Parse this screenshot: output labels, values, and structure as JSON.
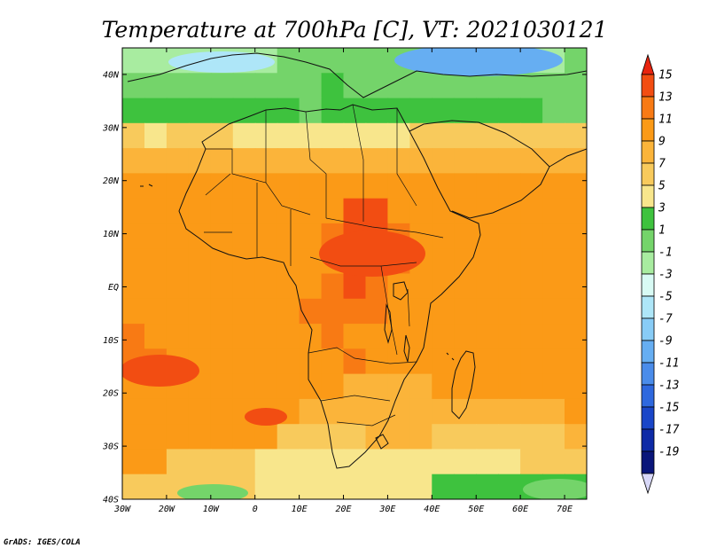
{
  "title": "Temperature at 700hPa [C], VT: 2021030121",
  "credit": "GrADS: IGES/COLA",
  "map": {
    "lon_range": [
      -30,
      75
    ],
    "lat_range": [
      -40,
      45
    ],
    "lat_ticks": [
      {
        "lat": 40,
        "label": "40N"
      },
      {
        "lat": 30,
        "label": "30N"
      },
      {
        "lat": 20,
        "label": "20N"
      },
      {
        "lat": 10,
        "label": "10N"
      },
      {
        "lat": 0,
        "label": "EQ"
      },
      {
        "lat": -10,
        "label": "10S"
      },
      {
        "lat": -20,
        "label": "20S"
      },
      {
        "lat": -30,
        "label": "30S"
      },
      {
        "lat": -40,
        "label": "40S"
      }
    ],
    "lon_ticks": [
      {
        "lon": -30,
        "label": "30W"
      },
      {
        "lon": -20,
        "label": "20W"
      },
      {
        "lon": -10,
        "label": "10W"
      },
      {
        "lon": 0,
        "label": "0"
      },
      {
        "lon": 10,
        "label": "10E"
      },
      {
        "lon": 20,
        "label": "20E"
      },
      {
        "lon": 30,
        "label": "30E"
      },
      {
        "lon": 40,
        "label": "40E"
      },
      {
        "lon": 50,
        "label": "50E"
      },
      {
        "lon": 60,
        "label": "60E"
      },
      {
        "lon": 70,
        "label": "70E"
      }
    ]
  },
  "colorbar": {
    "labels": [
      "15",
      "13",
      "11",
      "9",
      "7",
      "5",
      "3",
      "1",
      "-1",
      "-3",
      "-5",
      "-7",
      "-9",
      "-11",
      "-13",
      "-15",
      "-17",
      "-19"
    ],
    "colors": [
      "#e8240f",
      "#f24d12",
      "#f87a14",
      "#fb9a17",
      "#fbb43a",
      "#f8ca5c",
      "#f8e68c",
      "#3ec23e",
      "#74d46a",
      "#a8eca0",
      "#d8faf4",
      "#aee6f8",
      "#88ccf6",
      "#66aef2",
      "#4a8cea",
      "#2e68de",
      "#1a46c8",
      "#0e2aa6",
      "#0a167a",
      "#d8d8f8"
    ]
  },
  "field": {
    "legend": "0=very cold, 9=very warm",
    "rows": [
      "111111122222222222112",
      "222222222322222222222",
      "333333332333333333322",
      "545554444444455555555",
      "666666666666666666666",
      "777777777777777777777",
      "777777777799777777777",
      "777777777899877777777",
      "777777777799877777777",
      "777777777898777777777",
      "777777778888777777777",
      "877777777877777777777",
      "887777777787777777777",
      "777777777766667777777",
      "777777776666666666667",
      "777777755556665555556",
      "775555444444444444555",
      "555555444444443333333"
    ]
  }
}
